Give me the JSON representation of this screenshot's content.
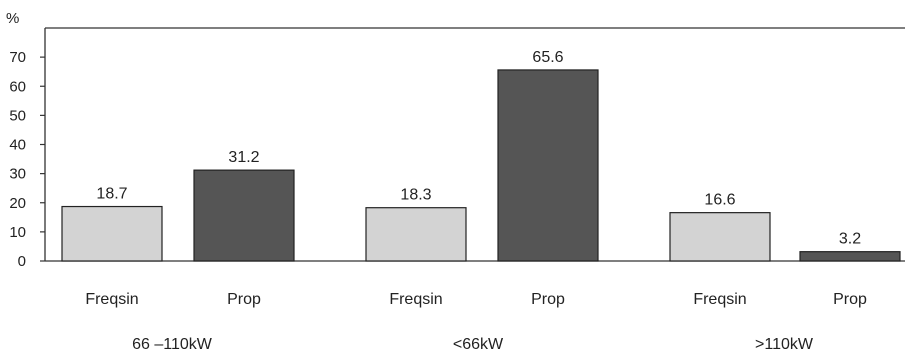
{
  "chart_data": {
    "type": "bar",
    "y_unit": "%",
    "ylim": [
      0,
      80
    ],
    "yticks": [
      0,
      10,
      20,
      30,
      40,
      50,
      60,
      70
    ],
    "grid": false,
    "groups": [
      {
        "label": "66 –110kW",
        "bars": [
          {
            "label": "Freqsin",
            "value": 18.7,
            "value_text": "18.7"
          },
          {
            "label": "Prop",
            "value": 31.2,
            "value_text": "31.2"
          }
        ]
      },
      {
        "label": "<66kW",
        "bars": [
          {
            "label": "Freqsin",
            "value": 18.3,
            "value_text": "18.3"
          },
          {
            "label": "Prop",
            "value": 65.6,
            "value_text": "65.6"
          }
        ]
      },
      {
        "label": ">110kW",
        "bars": [
          {
            "label": "Freqsin",
            "value": 16.6,
            "value_text": "16.6"
          },
          {
            "label": "Prop",
            "value": 3.2,
            "value_text": "3.2"
          }
        ]
      }
    ],
    "colors": {
      "Freqsin": "#d3d3d3",
      "Prop": "#555555"
    }
  }
}
